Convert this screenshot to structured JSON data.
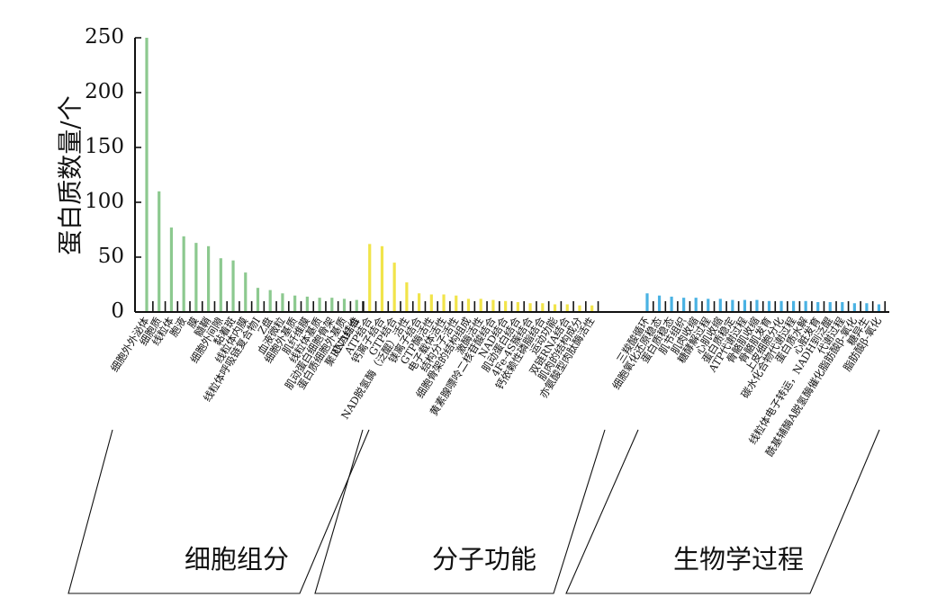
{
  "chart_data": {
    "type": "bar",
    "ylabel": "蛋白质数量/个",
    "ylim": [
      0,
      250
    ],
    "yticks": [
      0,
      50,
      100,
      150,
      200,
      250
    ],
    "grid": false,
    "legend": "none",
    "groups": [
      {
        "name": "细胞组分",
        "color": "#8cc98f",
        "categories": [
          "细胞外外泌体",
          "细胞质",
          "线粒体",
          "胞液",
          "膜",
          "髓鞘",
          "细胞外间隙",
          "黏着斑",
          "线粒体内膜",
          "线粒体呼吸链复合物I",
          "Z盘",
          "血液微粒",
          "细胞外基质",
          "肌纤维膜",
          "线粒体基质",
          "肌动蛋白细胞骨架",
          "蛋白质细胞外基质",
          "应力纤维"
        ],
        "values": [
          250,
          110,
          77,
          69,
          63,
          60,
          49,
          47,
          36,
          22,
          20,
          17,
          15,
          14,
          13,
          13,
          12,
          11
        ]
      },
      {
        "name": "分子功能",
        "color": "#f1e44a",
        "categories": [
          "聚RNA结合",
          "ATP结合",
          "钙离子结合",
          "GTP结合",
          "NAD脱氢酶（泛醌）活性",
          "镁离子结合",
          "GTP酶活性",
          "电子载体活性",
          "结构分子活性",
          "细胞骨架的结构组成",
          "激酶活性",
          "黄素腺嘌呤二核苷酸结合",
          "NAD结合",
          "肌动蛋白结合",
          "4Fe-4S簇结合",
          "钙依赖性磷脂结合",
          "运动功能",
          "双链RNA结合",
          "肌肉的结构成分",
          "亦氨酸型肉肽酶活性"
        ],
        "values": [
          0,
          62,
          60,
          45,
          27,
          17,
          16,
          16,
          15,
          12,
          12,
          11,
          10,
          9,
          8,
          8,
          7,
          7,
          6,
          6
        ]
      },
      {
        "name": "生物学过程",
        "color": "#4ab2e3",
        "categories": [
          "三羧酸循环",
          "细胞氧化还原稳态",
          "蛋白质稳态",
          "肌节组织",
          "肌肉收缩",
          "糖酵解过程",
          "心肌收缩",
          "蛋白质稳定",
          "ATP代谢过程",
          "骨骼肌收缩",
          "骨骼肌发育",
          "上皮细胞分化",
          "碳水化合物代谢过程",
          "蛋白质水解",
          "心脏发育",
          "线粒体电子转运，NADH到泛醌",
          "代谢过程",
          "酰基辅酶A脱氢酶催化脂肪酸β-氧化",
          "糖异生",
          "脂肪酸β-氧化"
        ],
        "values": [
          17,
          15,
          14,
          13,
          13,
          12,
          12,
          11,
          11,
          11,
          10,
          10,
          10,
          10,
          9,
          9,
          9,
          8,
          8,
          7
        ]
      }
    ]
  }
}
